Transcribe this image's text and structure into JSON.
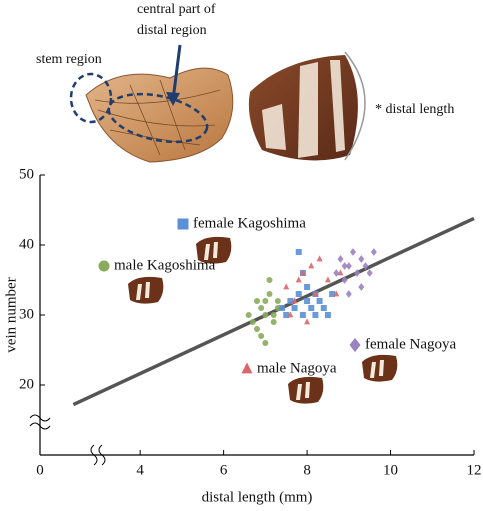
{
  "figure": {
    "stem_label": "stem region",
    "central_label_1": "central part of",
    "central_label_2": "distal region",
    "distal_length_label": "* distal length"
  },
  "chart_data": {
    "type": "scatter",
    "xlabel": "distal length (mm)",
    "ylabel": "vein number",
    "origin_label": "0",
    "xlim": [
      1.6,
      12
    ],
    "xticks": [
      4,
      6,
      8,
      10,
      12
    ],
    "ylim": [
      10,
      50
    ],
    "yticks": [
      20,
      30,
      40,
      50
    ],
    "fit_line": {
      "x": [
        2.4,
        12
      ],
      "y": [
        17.2,
        43.8
      ],
      "color": "#555555"
    },
    "series": [
      {
        "name": "male Kagoshima",
        "color": "#8aab5a",
        "marker": "circle",
        "x": [
          6.6,
          6.7,
          6.8,
          6.9,
          6.9,
          7.0,
          7.0,
          7.1,
          7.1,
          7.2,
          7.3,
          7.3,
          7.0,
          6.8,
          7.2
        ],
        "y": [
          30,
          29,
          28,
          27,
          31,
          32,
          26,
          33,
          35,
          30,
          32,
          31,
          30,
          32,
          29
        ]
      },
      {
        "name": "female Kagoshima",
        "color": "#5b8fd6",
        "marker": "square",
        "x": [
          7.4,
          7.5,
          7.6,
          7.7,
          7.8,
          7.8,
          7.9,
          8.0,
          8.0,
          8.1,
          8.2,
          8.2,
          8.3,
          8.4,
          8.5,
          8.6,
          7.9
        ],
        "y": [
          31,
          30,
          32,
          31,
          39,
          33,
          30,
          32,
          34,
          31,
          30,
          33,
          32,
          31,
          30,
          33,
          36
        ]
      },
      {
        "name": "male Nagoya",
        "color": "#d9676b",
        "marker": "triangle",
        "x": [
          7.5,
          7.7,
          7.8,
          7.9,
          8.0,
          8.1,
          8.2,
          8.3,
          8.5,
          8.7,
          8.8,
          7.6
        ],
        "y": [
          34,
          32,
          35,
          36,
          29,
          37,
          33,
          38,
          35,
          33,
          36,
          30
        ]
      },
      {
        "name": "female Nagoya",
        "color": "#9b82c0",
        "marker": "diamond",
        "x": [
          8.7,
          8.8,
          8.9,
          9.0,
          9.0,
          9.1,
          9.2,
          9.3,
          9.3,
          9.4,
          9.5,
          9.6,
          8.9
        ],
        "y": [
          36,
          38,
          35,
          37,
          33,
          39,
          36,
          38,
          34,
          37,
          36,
          39,
          37
        ]
      }
    ]
  }
}
